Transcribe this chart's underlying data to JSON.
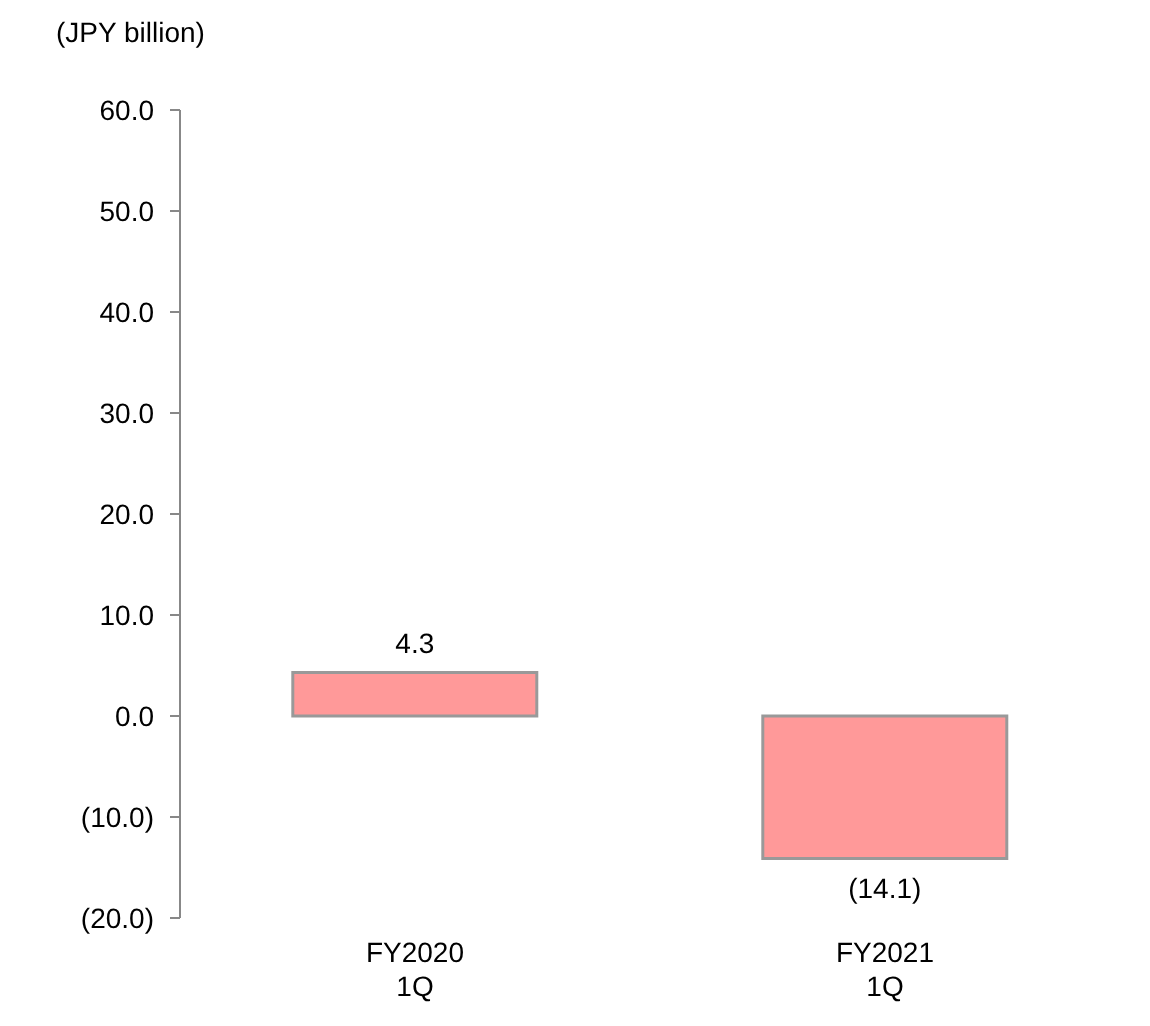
{
  "chart_data": {
    "type": "bar",
    "ylabel": "(JPY billion)",
    "categories": [
      "FY2020 1Q",
      "FY2021 1Q"
    ],
    "values": [
      4.3,
      -14.1
    ],
    "value_labels": [
      "4.3",
      "(14.1)"
    ],
    "color": "#ff9999",
    "ylim": [
      -20,
      60
    ],
    "yticks": [
      {
        "value": -20,
        "label": "(20.0)"
      },
      {
        "value": -10,
        "label": "(10.0)"
      },
      {
        "value": 0,
        "label": "0.0"
      },
      {
        "value": 10,
        "label": "10.0"
      },
      {
        "value": 20,
        "label": "20.0"
      },
      {
        "value": 30,
        "label": "30.0"
      },
      {
        "value": 40,
        "label": "40.0"
      },
      {
        "value": 50,
        "label": "50.0"
      },
      {
        "value": 60,
        "label": "60.0"
      }
    ],
    "grid": false
  }
}
